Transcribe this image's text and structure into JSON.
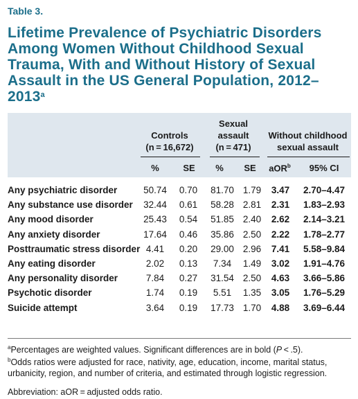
{
  "table_number": "Table 3.",
  "title": "Lifetime Prevalence of Psychiatric Disorders Among Women Without Childhood Sexual Trauma, With and Without History of Sexual Assault in the US General Population, 2012–2013",
  "title_sup": "a",
  "groups": {
    "controls_l1": "Controls",
    "controls_l2": "(n = 16,672)",
    "assault_l1": "Sexual",
    "assault_l2": "assault",
    "assault_l3": "(n = 471)",
    "without_l1": "Without childhood",
    "without_l2": "sexual assault"
  },
  "subheaders": {
    "pct1": "%",
    "se1": "SE",
    "pct2": "%",
    "se2": "SE",
    "aor": "aOR",
    "aor_sup": "b",
    "ci": "95% CI"
  },
  "rows": [
    {
      "label": "Any psychiatric disorder",
      "c_pct": "50.74",
      "c_se": "0.70",
      "a_pct": "81.70",
      "a_se": "1.79",
      "aor": "3.47",
      "ci": "2.70–4.47"
    },
    {
      "label": "Any substance use disorder",
      "c_pct": "32.44",
      "c_se": "0.61",
      "a_pct": "58.28",
      "a_se": "2.81",
      "aor": "2.31",
      "ci": "1.83–2.93"
    },
    {
      "label": "Any mood disorder",
      "c_pct": "25.43",
      "c_se": "0.54",
      "a_pct": "51.85",
      "a_se": "2.40",
      "aor": "2.62",
      "ci": "2.14–3.21"
    },
    {
      "label": "Any anxiety disorder",
      "c_pct": "17.64",
      "c_se": "0.46",
      "a_pct": "35.86",
      "a_se": "2.50",
      "aor": "2.22",
      "ci": "1.78–2.77"
    },
    {
      "label": "Posttraumatic stress disorder",
      "c_pct": "4.41",
      "c_se": "0.20",
      "a_pct": "29.00",
      "a_se": "2.96",
      "aor": "7.41",
      "ci": "5.58–9.84"
    },
    {
      "label": "Any eating disorder",
      "c_pct": "2.02",
      "c_se": "0.13",
      "a_pct": "7.34",
      "a_se": "1.49",
      "aor": "3.02",
      "ci": "1.91–4.76"
    },
    {
      "label": "Any personality disorder",
      "c_pct": "7.84",
      "c_se": "0.27",
      "a_pct": "31.54",
      "a_se": "2.50",
      "aor": "4.63",
      "ci": "3.66–5.86"
    },
    {
      "label": "Psychotic disorder",
      "c_pct": "1.74",
      "c_se": "0.19",
      "a_pct": "5.51",
      "a_se": "1.35",
      "aor": "3.05",
      "ci": "1.76–5.29"
    },
    {
      "label": "Suicide attempt",
      "c_pct": "3.64",
      "c_se": "0.19",
      "a_pct": "17.73",
      "a_se": "1.70",
      "aor": "4.88",
      "ci": "3.69–6.44"
    }
  ],
  "footnotes": {
    "a_mark": "a",
    "a_text": "Percentages are weighted values. Significant differences are in bold (",
    "a_p": "P",
    "a_end": " < .5).",
    "b_mark": "b",
    "b_text": "Odds ratios were adjusted for race, nativity, age, education, income, marital status, urbanicity, region, and number of criteria, and estimated through logistic regression.",
    "abbrev": "Abbreviation: aOR = adjusted odds ratio."
  }
}
